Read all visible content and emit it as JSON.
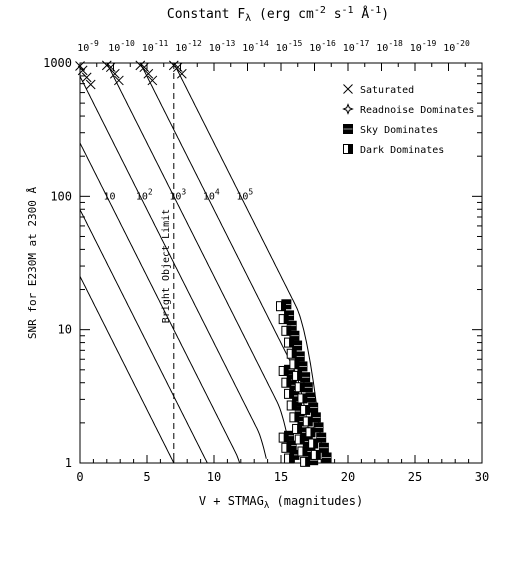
{
  "chart_data": {
    "type": "line",
    "title": "Constant F",
    "title_sub": "λ",
    "title_units_prefix": " (erg cm",
    "title_units_exp1": "-2",
    "title_units_mid1": " s",
    "title_units_exp2": "-1",
    "title_units_mid2": " Å",
    "title_units_exp3": "-1",
    "title_units_suffix": ")",
    "xlabel": "V + STMAG",
    "xlabel_sub": "λ",
    "xlabel_suffix": " (magnitudes)",
    "ylabel": "SNR for E230M at 2300 Å",
    "xlim": [
      0,
      30
    ],
    "ylim": [
      1,
      1000
    ],
    "yscale": "log",
    "x_ticks": [
      0,
      5,
      10,
      15,
      20,
      25,
      30
    ],
    "y_ticks": [
      1,
      10,
      100,
      1000
    ],
    "top_axis_ticks": [
      {
        "x": 0.6,
        "base": "10",
        "exp": "-9"
      },
      {
        "x": 3.1,
        "base": "10",
        "exp": "-10"
      },
      {
        "x": 5.6,
        "base": "10",
        "exp": "-11"
      },
      {
        "x": 8.1,
        "base": "10",
        "exp": "-12"
      },
      {
        "x": 10.6,
        "base": "10",
        "exp": "-13"
      },
      {
        "x": 13.1,
        "base": "10",
        "exp": "-14"
      },
      {
        "x": 15.6,
        "base": "10",
        "exp": "-15"
      },
      {
        "x": 18.1,
        "base": "10",
        "exp": "-16"
      },
      {
        "x": 20.6,
        "base": "10",
        "exp": "-17"
      },
      {
        "x": 23.1,
        "base": "10",
        "exp": "-18"
      },
      {
        "x": 25.6,
        "base": "10",
        "exp": "-19"
      },
      {
        "x": 28.1,
        "base": "10",
        "exp": "-20"
      }
    ],
    "bright_object_limit": {
      "x": 7,
      "label": "Bright Object Limit"
    },
    "series": [
      {
        "t0": 7.0,
        "knee": 0,
        "end": 7.1
      },
      {
        "t0": 9.5,
        "knee": 0,
        "end": 9.7
      },
      {
        "t0": 12.0,
        "knee": 2,
        "end": 14.2
      },
      {
        "t0": 14.5,
        "knee": 4,
        "end": 15.8
      },
      {
        "t0": 17.0,
        "knee": 6,
        "end": 17.3
      },
      {
        "t0": 19.5,
        "knee": 8,
        "end": 18.5
      },
      {
        "t0": 22.0,
        "knee": 10,
        "end": 18.7
      }
    ],
    "exposure_labels": [
      {
        "x": 2.2,
        "y": 95,
        "base": "10",
        "exp": ""
      },
      {
        "x": 4.8,
        "y": 95,
        "base": "10",
        "exp": "2"
      },
      {
        "x": 7.3,
        "y": 95,
        "base": "10",
        "exp": "3"
      },
      {
        "x": 9.8,
        "y": 95,
        "base": "10",
        "exp": "4"
      },
      {
        "x": 12.3,
        "y": 95,
        "base": "10",
        "exp": "5"
      }
    ],
    "markers": {
      "saturated": [
        [
          0.2,
          880
        ],
        [
          0.5,
          780
        ],
        [
          0.8,
          690
        ],
        [
          2.3,
          930
        ],
        [
          2.6,
          830
        ],
        [
          2.9,
          740
        ],
        [
          4.8,
          930
        ],
        [
          5.1,
          830
        ],
        [
          5.4,
          740
        ],
        [
          7.3,
          930
        ],
        [
          7.6,
          830
        ],
        [
          0.0,
          950
        ],
        [
          2.0,
          960
        ],
        [
          4.5,
          960
        ],
        [
          7.0,
          960
        ]
      ],
      "readnoise": [],
      "sky": [
        [
          15.4,
          15.5
        ],
        [
          15.6,
          12.8
        ],
        [
          15.8,
          10.7
        ],
        [
          16.0,
          9.0
        ],
        [
          16.2,
          7.6
        ],
        [
          16.4,
          6.3
        ],
        [
          16.6,
          5.3
        ],
        [
          16.8,
          4.4
        ],
        [
          17.0,
          3.7
        ],
        [
          17.2,
          3.1
        ],
        [
          17.4,
          2.6
        ],
        [
          17.6,
          2.2
        ],
        [
          17.8,
          1.85
        ],
        [
          18.0,
          1.55
        ],
        [
          18.2,
          1.3
        ],
        [
          18.4,
          1.1
        ],
        [
          15.6,
          5.0
        ],
        [
          15.8,
          4.2
        ],
        [
          16.0,
          3.5
        ],
        [
          16.2,
          2.9
        ],
        [
          16.4,
          2.45
        ],
        [
          16.6,
          2.05
        ],
        [
          16.8,
          1.7
        ],
        [
          17.0,
          1.45
        ],
        [
          17.2,
          1.22
        ],
        [
          17.4,
          1.05
        ],
        [
          15.6,
          1.6
        ],
        [
          15.8,
          1.35
        ],
        [
          16.0,
          1.15
        ]
      ],
      "dark": [
        [
          15.0,
          15.0
        ],
        [
          15.2,
          12.0
        ],
        [
          15.4,
          9.8
        ],
        [
          15.6,
          8.0
        ],
        [
          15.8,
          6.6
        ],
        [
          16.0,
          5.5
        ],
        [
          16.2,
          4.5
        ],
        [
          16.4,
          3.7
        ],
        [
          16.6,
          3.05
        ],
        [
          16.8,
          2.5
        ],
        [
          17.0,
          2.05
        ],
        [
          17.2,
          1.7
        ],
        [
          17.4,
          1.4
        ],
        [
          17.6,
          1.15
        ],
        [
          15.2,
          4.9
        ],
        [
          15.4,
          4.0
        ],
        [
          15.6,
          3.3
        ],
        [
          15.8,
          2.7
        ],
        [
          16.0,
          2.2
        ],
        [
          16.2,
          1.8
        ],
        [
          16.4,
          1.5
        ],
        [
          16.6,
          1.22
        ],
        [
          16.8,
          1.02
        ],
        [
          15.2,
          1.55
        ],
        [
          15.4,
          1.3
        ],
        [
          15.6,
          1.08
        ]
      ]
    },
    "legend": {
      "placement": "top-right",
      "items": [
        {
          "marker": "saturated",
          "label": "Saturated"
        },
        {
          "marker": "readnoise",
          "label": "Readnoise Dominates"
        },
        {
          "marker": "sky",
          "label": "Sky Dominates"
        },
        {
          "marker": "dark",
          "label": "Dark Dominates"
        }
      ]
    }
  }
}
